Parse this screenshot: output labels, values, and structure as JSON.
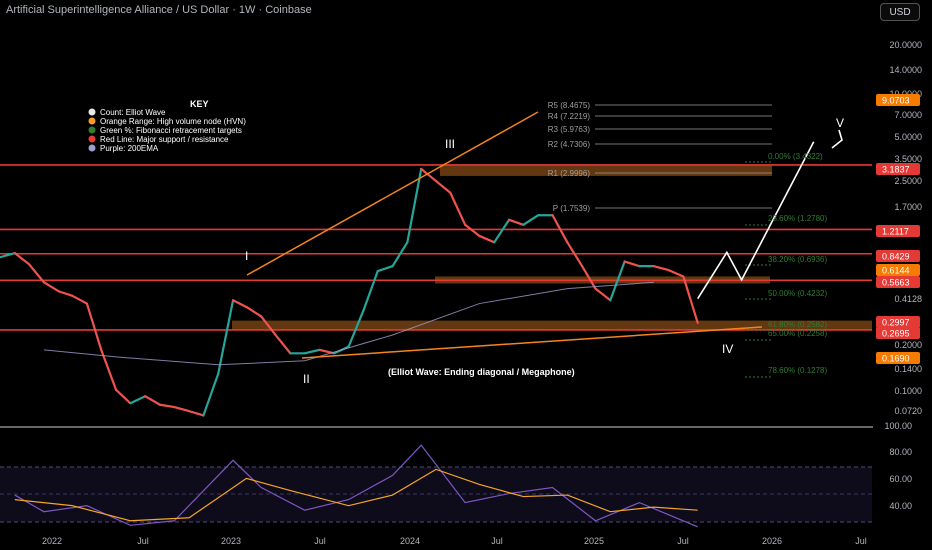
{
  "header": {
    "title": "Artificial Superintelligence Alliance / US Dollar · 1W · Coinbase",
    "currency": "USD"
  },
  "key": {
    "title": "KEY",
    "items": [
      {
        "label": "Count: Elliot Wave",
        "color": "#e8e8e8"
      },
      {
        "label": "Orange Range: High volume node (HVN)",
        "color": "#f59b2a"
      },
      {
        "label": "Green %: Fibonacci retracement targets",
        "color": "#2e7d32"
      },
      {
        "label": "Red Line: Major support / resistance",
        "color": "#e53935"
      },
      {
        "label": "Purple: 200EMA",
        "color": "#9e9ecf"
      }
    ]
  },
  "annotations": {
    "wave_labels": [
      "I",
      "II",
      "III",
      "IV",
      "V"
    ],
    "pattern_label": "(Elliot Wave: Ending diagonal / Megaphone)"
  },
  "price_axis_labels": [
    "20.0000",
    "14.0000",
    "10.0000",
    "7.0000",
    "5.0000",
    "3.5000",
    "2.5000",
    "1.7000",
    "0.4128",
    "0.2000",
    "0.1400",
    "0.1000",
    "0.0720"
  ],
  "price_badges": [
    {
      "value": "9.0703",
      "color": "#f57c00"
    },
    {
      "value": "3.1837",
      "color": "#e53935"
    },
    {
      "value": "1.2117",
      "color": "#e53935"
    },
    {
      "value": "0.8429",
      "color": "#e53935"
    },
    {
      "value": "0.6144",
      "color": "#f57c00"
    },
    {
      "value": "0.5663",
      "color": "#e53935"
    },
    {
      "value": "0.2997",
      "color": "#e53935"
    },
    {
      "value": "0.2695",
      "color": "#e53935"
    },
    {
      "value": "0.1690",
      "color": "#f57c00"
    }
  ],
  "pivot_labels": [
    "R5 (8.4675)",
    "R4 (7.2219)",
    "R3 (5.9763)",
    "R2 (4.7306)",
    "R1 (2.9996)",
    "P (1.7539)"
  ],
  "fib_labels": [
    "0.00% (3.4322)",
    "23.60% (1.2780)",
    "38.20% (0.6936)",
    "50.00% (0.4232)",
    "61.80% (0.2582)",
    "65.00% (0.2258)",
    "78.60% (0.1278)"
  ],
  "rsi_axis_labels": [
    "100.00",
    "80.00",
    "60.00",
    "40.00"
  ],
  "time_labels": [
    "2022",
    "Jul",
    "2023",
    "Jul",
    "2024",
    "Jul",
    "2025",
    "Jul",
    "2026",
    "Jul"
  ],
  "colors": {
    "up": "#26a69a",
    "down": "#ef5350",
    "resistance": "#e53935",
    "hvn": "#b5651d",
    "wedge": "#f5841f",
    "fib": "#2e7d32",
    "rsi": "#7e57c2",
    "rsi_ma": "#f5a623"
  },
  "chart_data": {
    "type": "line",
    "title": "Artificial Superintelligence Alliance / US Dollar · 1W · Coinbase",
    "y_scale": "log",
    "ylim": [
      0.065,
      30
    ],
    "xlim": [
      "2021-10",
      "2026-10"
    ],
    "grid": false,
    "series": [
      {
        "values": [
          [
            "2021-10",
            0.8
          ],
          [
            "2021-11",
            0.85
          ],
          [
            "2021-12",
            0.72
          ],
          [
            "2022-01",
            0.55
          ],
          [
            "2022-02",
            0.48
          ],
          [
            "2022-03",
            0.45
          ],
          [
            "2022-04",
            0.4
          ],
          [
            "2022-05",
            0.2
          ],
          [
            "2022-06",
            0.11
          ],
          [
            "2022-07",
            0.09
          ],
          [
            "2022-08",
            0.1
          ],
          [
            "2022-09",
            0.088
          ],
          [
            "2022-10",
            0.085
          ],
          [
            "2022-11",
            0.08
          ],
          [
            "2022-12",
            0.075
          ],
          [
            "2023-01",
            0.14
          ],
          [
            "2023-02",
            0.42
          ],
          [
            "2023-03",
            0.38
          ],
          [
            "2023-04",
            0.33
          ],
          [
            "2023-05",
            0.25
          ],
          [
            "2023-06",
            0.19
          ],
          [
            "2023-07",
            0.19
          ],
          [
            "2023-08",
            0.2
          ],
          [
            "2023-09",
            0.19
          ],
          [
            "2023-10",
            0.21
          ],
          [
            "2023-11",
            0.36
          ],
          [
            "2023-12",
            0.65
          ],
          [
            "2024-01",
            0.7
          ],
          [
            "2024-02",
            1.0
          ],
          [
            "2024-03",
            3.0
          ],
          [
            "2024-04",
            2.5
          ],
          [
            "2024-05",
            2.1
          ],
          [
            "2024-06",
            1.3
          ],
          [
            "2024-07",
            1.1
          ],
          [
            "2024-08",
            1.0
          ],
          [
            "2024-09",
            1.4
          ],
          [
            "2024-10",
            1.3
          ],
          [
            "2024-11",
            1.5
          ],
          [
            "2024-12",
            1.5
          ],
          [
            "2025-01",
            1.0
          ],
          [
            "2025-02",
            0.7
          ],
          [
            "2025-03",
            0.5
          ],
          [
            "2025-04",
            0.42
          ],
          [
            "2025-05",
            0.75
          ],
          [
            "2025-06",
            0.7
          ],
          [
            "2025-07",
            0.7
          ],
          [
            "2025-08",
            0.66
          ],
          [
            "2025-09",
            0.6
          ],
          [
            "2025-10",
            0.3
          ]
        ]
      }
    ],
    "projection": [
      [
        "2025-10",
        0.43
      ],
      [
        "2025-12",
        0.86
      ],
      [
        "2026-01",
        0.57
      ],
      [
        "2026-06",
        4.5
      ]
    ],
    "support_resistance": [
      3.1837,
      1.2117,
      0.8429,
      0.5663,
      0.2695
    ],
    "hvn_zones": [
      [
        2.7,
        3.2
      ],
      [
        0.54,
        0.6
      ],
      [
        0.27,
        0.31
      ]
    ],
    "ema200": [
      [
        "2022-01",
        0.2
      ],
      [
        "2022-06",
        0.18
      ],
      [
        "2023-01",
        0.16
      ],
      [
        "2023-07",
        0.17
      ],
      [
        "2024-01",
        0.25
      ],
      [
        "2024-07",
        0.4
      ],
      [
        "2025-01",
        0.5
      ],
      [
        "2025-07",
        0.55
      ]
    ],
    "rsi": {
      "ylim": [
        20,
        100
      ],
      "values": [
        [
          "2021-11",
          55
        ],
        [
          "2022-01",
          44
        ],
        [
          "2022-04",
          48
        ],
        [
          "2022-07",
          35
        ],
        [
          "2022-10",
          38
        ],
        [
          "2023-02",
          78
        ],
        [
          "2023-04",
          60
        ],
        [
          "2023-07",
          45
        ],
        [
          "2023-10",
          52
        ],
        [
          "2024-01",
          68
        ],
        [
          "2024-03",
          88
        ],
        [
          "2024-06",
          50
        ],
        [
          "2024-09",
          56
        ],
        [
          "2024-12",
          60
        ],
        [
          "2025-03",
          38
        ],
        [
          "2025-06",
          50
        ],
        [
          "2025-10",
          34
        ]
      ],
      "ma": [
        [
          "2021-11",
          52
        ],
        [
          "2022-03",
          48
        ],
        [
          "2022-07",
          38
        ],
        [
          "2022-11",
          40
        ],
        [
          "2023-03",
          66
        ],
        [
          "2023-06",
          58
        ],
        [
          "2023-10",
          48
        ],
        [
          "2024-01",
          55
        ],
        [
          "2024-04",
          72
        ],
        [
          "2024-07",
          62
        ],
        [
          "2024-10",
          54
        ],
        [
          "2025-01",
          55
        ],
        [
          "2025-04",
          44
        ],
        [
          "2025-07",
          47
        ],
        [
          "2025-10",
          45
        ]
      ]
    }
  }
}
